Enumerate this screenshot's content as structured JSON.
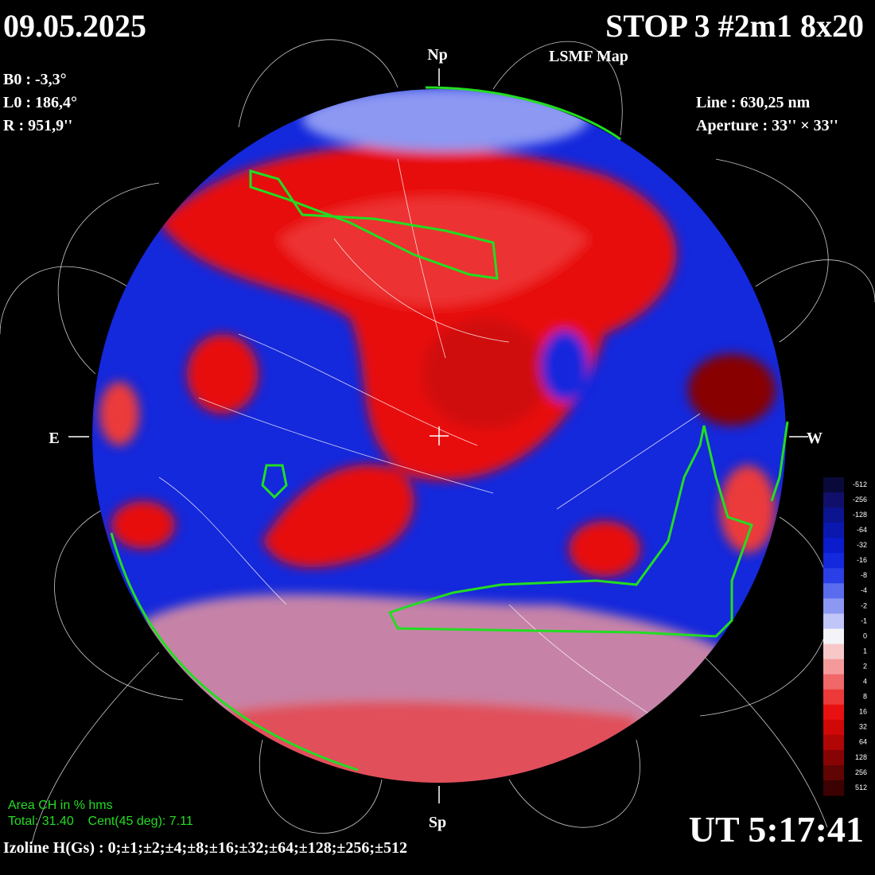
{
  "header": {
    "date": "09.05.2025",
    "title": "STOP 3 #2m1 8x20",
    "subtitle": "LSMF  Map"
  },
  "params": {
    "b0": "B0 : -3,3°",
    "l0": "L0 : 186,4°",
    "r": "R  : 951,9''"
  },
  "instrument": {
    "line": "Line :  630,25 nm",
    "aperture": "Aperture : 33'' × 33''"
  },
  "directions": {
    "north": "Np",
    "south": "Sp",
    "east": "E",
    "west": "W"
  },
  "colorbar": {
    "levels": [
      {
        "label": "-512",
        "color": "#0a0a3a"
      },
      {
        "label": "-256",
        "color": "#10106a"
      },
      {
        "label": "-128",
        "color": "#0c1490"
      },
      {
        "label": "-64",
        "color": "#0a18b0"
      },
      {
        "label": "-32",
        "color": "#0a1ccc"
      },
      {
        "label": "-16",
        "color": "#1428dc"
      },
      {
        "label": "-8",
        "color": "#2a40e6"
      },
      {
        "label": "-4",
        "color": "#5a6cee"
      },
      {
        "label": "-2",
        "color": "#8c98f2"
      },
      {
        "label": "-1",
        "color": "#c0c6f8"
      },
      {
        "label": "0",
        "color": "#f4f4f8"
      },
      {
        "label": "1",
        "color": "#f8c8c8"
      },
      {
        "label": "2",
        "color": "#f49a9a"
      },
      {
        "label": "4",
        "color": "#f06868"
      },
      {
        "label": "8",
        "color": "#ec3a3a"
      },
      {
        "label": "16",
        "color": "#e81010"
      },
      {
        "label": "32",
        "color": "#d00808"
      },
      {
        "label": "64",
        "color": "#b00606"
      },
      {
        "label": "128",
        "color": "#880404"
      },
      {
        "label": "256",
        "color": "#600404"
      },
      {
        "label": "512",
        "color": "#3c0202"
      }
    ]
  },
  "area": {
    "title": "Area CH in % hms",
    "values": "Total: 31.40    Cent(45 deg): 7.11"
  },
  "time": "UT 5:17:41",
  "isolines": "Izoline H(Gs) : 0;±1;±2;±4;±8;±16;±32;±64;±128;±256;±512"
}
